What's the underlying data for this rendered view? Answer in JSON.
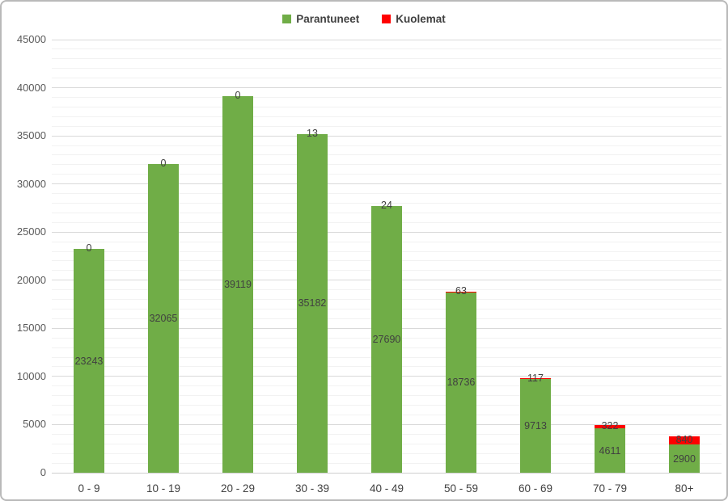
{
  "legend": {
    "items": [
      {
        "label": "Parantuneet",
        "color": "#70AD47"
      },
      {
        "label": "Kuolemat",
        "color": "#FF0000"
      }
    ]
  },
  "chart_data": {
    "type": "bar",
    "stacked": true,
    "title": "",
    "xlabel": "",
    "ylabel": "",
    "categories": [
      "0 - 9",
      "10 - 19",
      "20 - 29",
      "30 - 39",
      "40 - 49",
      "50 - 59",
      "60 - 69",
      "70 - 79",
      "80+"
    ],
    "series": [
      {
        "name": "Parantuneet",
        "color": "#70AD47",
        "values": [
          23243,
          32065,
          39119,
          35182,
          27690,
          18736,
          9713,
          4611,
          2900
        ]
      },
      {
        "name": "Kuolemat",
        "color": "#FF0000",
        "values": [
          0,
          0,
          0,
          13,
          24,
          63,
          117,
          322,
          840
        ]
      }
    ],
    "ylim": [
      0,
      45000
    ],
    "y_major_tick": 5000,
    "y_minor_tick": 1000,
    "y_tick_labels": [
      "0",
      "5000",
      "10000",
      "15000",
      "20000",
      "25000",
      "30000",
      "35000",
      "40000",
      "45000"
    ],
    "grid": true,
    "legend_position": "top-center",
    "value_labels_visible": true,
    "label_color": "#404040",
    "tick_label_color": "#595959",
    "major_grid_color": "#d9d9d9",
    "minor_grid_color": "#f2f2f2"
  }
}
